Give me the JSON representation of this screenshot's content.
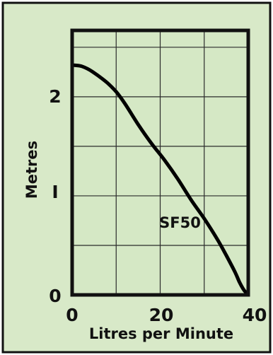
{
  "theme": {
    "panel_background": "#d8e9c8",
    "plot_background": "#d5e8c5",
    "border_color": "#111111",
    "grid_color": "#2b2b2b",
    "curve_color": "#000000"
  },
  "chart_data": {
    "type": "line",
    "title": "",
    "xlabel": "Litres per Minute",
    "ylabel": "Metres",
    "xlim": [
      0,
      40
    ],
    "ylim": [
      0,
      2.67
    ],
    "grid": true,
    "x_tick_labels": [
      "0",
      "20",
      "40"
    ],
    "y_tick_labels": [
      "0",
      "I",
      "2"
    ],
    "x_grid_values": [
      10,
      20,
      30
    ],
    "y_grid_values": [
      0.5,
      1,
      1.5,
      2,
      2.5
    ],
    "series": [
      {
        "label": "SF50",
        "x": [
          0,
          2,
          4,
          6,
          8,
          10,
          12,
          15,
          18,
          21,
          24,
          27,
          30,
          33,
          35,
          37,
          38,
          39,
          40
        ],
        "y": [
          2.32,
          2.31,
          2.27,
          2.21,
          2.14,
          2.05,
          1.93,
          1.72,
          1.53,
          1.36,
          1.17,
          0.96,
          0.77,
          0.56,
          0.4,
          0.23,
          0.13,
          0.05,
          0.0
        ]
      }
    ],
    "annotations": [
      {
        "text": "SF50",
        "x": 24.5,
        "y": 0.72
      }
    ]
  }
}
